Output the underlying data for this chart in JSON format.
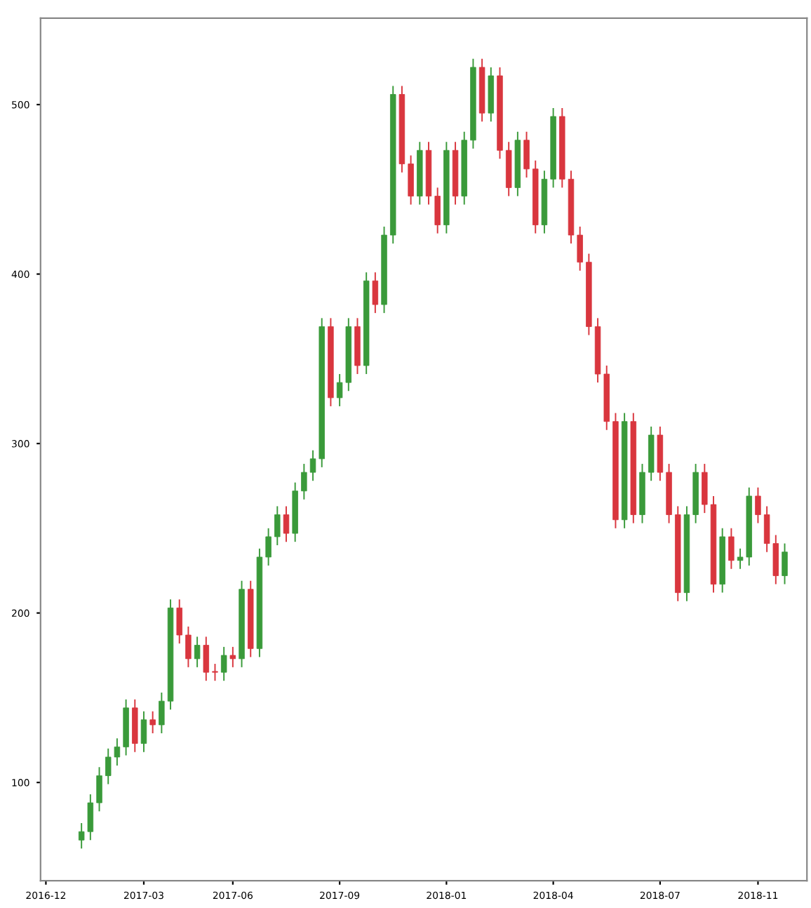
{
  "chart_data": {
    "type": "candlestick",
    "categories": [
      "2016-12",
      null,
      null,
      null,
      null,
      null,
      null,
      null,
      null,
      null,
      null,
      "2017-03",
      null,
      null,
      null,
      null,
      null,
      null,
      null,
      null,
      null,
      "2017-06",
      null,
      null,
      null,
      null,
      null,
      null,
      null,
      null,
      null,
      null,
      null,
      "2017-09",
      null,
      null,
      null,
      null,
      null,
      null,
      null,
      null,
      null,
      null,
      null,
      "2018-01",
      null,
      null,
      null,
      null,
      null,
      null,
      null,
      null,
      null,
      null,
      null,
      "2018-04",
      null,
      null,
      null,
      null,
      null,
      null,
      null,
      null,
      null,
      null,
      null,
      "2018-07",
      null,
      null,
      null,
      null,
      null,
      null,
      null,
      null,
      null,
      null,
      "2018-11",
      null,
      null,
      null
    ],
    "ohlc": [
      null,
      null,
      null,
      null,
      [
        66,
        76,
        61,
        71
      ],
      [
        71,
        93,
        66,
        88
      ],
      [
        88,
        109,
        83,
        104
      ],
      [
        104,
        120,
        99,
        115
      ],
      [
        115,
        126,
        110,
        121
      ],
      [
        121,
        149,
        116,
        144
      ],
      [
        144,
        149,
        118,
        123
      ],
      [
        123,
        142,
        118,
        137
      ],
      [
        137,
        142,
        129,
        134
      ],
      [
        134,
        153,
        129,
        148
      ],
      [
        148,
        208,
        143,
        203
      ],
      [
        203,
        208,
        182,
        187
      ],
      [
        187,
        192,
        168,
        173
      ],
      [
        173,
        186,
        168,
        181
      ],
      [
        181,
        186,
        160,
        165
      ],
      [
        165,
        170,
        160,
        165
      ],
      [
        165,
        180,
        160,
        175
      ],
      [
        175,
        180,
        168,
        173
      ],
      [
        173,
        219,
        168,
        214
      ],
      [
        214,
        219,
        174,
        179
      ],
      [
        179,
        238,
        174,
        233
      ],
      [
        233,
        250,
        228,
        245
      ],
      [
        245,
        263,
        240,
        258
      ],
      [
        258,
        263,
        242,
        247
      ],
      [
        247,
        277,
        242,
        272
      ],
      [
        272,
        288,
        267,
        283
      ],
      [
        283,
        296,
        278,
        291
      ],
      [
        291,
        374,
        286,
        369
      ],
      [
        369,
        374,
        322,
        327
      ],
      [
        327,
        341,
        322,
        336
      ],
      [
        336,
        374,
        331,
        369
      ],
      [
        369,
        374,
        341,
        346
      ],
      [
        346,
        401,
        341,
        396
      ],
      [
        396,
        401,
        377,
        382
      ],
      [
        382,
        428,
        377,
        423
      ],
      [
        423,
        511,
        418,
        506
      ],
      [
        506,
        511,
        460,
        465
      ],
      [
        465,
        470,
        441,
        446
      ],
      [
        446,
        478,
        441,
        473
      ],
      [
        473,
        478,
        441,
        446
      ],
      [
        446,
        451,
        424,
        429
      ],
      [
        429,
        478,
        424,
        473
      ],
      [
        473,
        478,
        441,
        446
      ],
      [
        446,
        484,
        441,
        479
      ],
      [
        479,
        527,
        474,
        522
      ],
      [
        522,
        527,
        490,
        495
      ],
      [
        495,
        522,
        490,
        517
      ],
      [
        517,
        522,
        468,
        473
      ],
      [
        473,
        478,
        446,
        451
      ],
      [
        451,
        484,
        446,
        479
      ],
      [
        479,
        484,
        457,
        462
      ],
      [
        462,
        467,
        424,
        429
      ],
      [
        429,
        461,
        424,
        456
      ],
      [
        456,
        498,
        451,
        493
      ],
      [
        493,
        498,
        451,
        456
      ],
      [
        456,
        461,
        418,
        423
      ],
      [
        423,
        428,
        402,
        407
      ],
      [
        407,
        412,
        364,
        369
      ],
      [
        369,
        374,
        336,
        341
      ],
      [
        341,
        346,
        308,
        313
      ],
      [
        313,
        318,
        250,
        255
      ],
      [
        255,
        318,
        250,
        313
      ],
      [
        313,
        318,
        253,
        258
      ],
      [
        258,
        288,
        253,
        283
      ],
      [
        283,
        310,
        278,
        305
      ],
      [
        305,
        310,
        278,
        283
      ],
      [
        283,
        288,
        253,
        258
      ],
      [
        258,
        263,
        207,
        212
      ],
      [
        212,
        263,
        207,
        258
      ],
      [
        258,
        288,
        253,
        283
      ],
      [
        283,
        288,
        259,
        264
      ],
      [
        264,
        269,
        212,
        217
      ],
      [
        217,
        250,
        212,
        245
      ],
      [
        245,
        250,
        226,
        231
      ],
      [
        231,
        238,
        226,
        233
      ],
      [
        233,
        274,
        228,
        269
      ],
      [
        269,
        274,
        253,
        258
      ],
      [
        258,
        263,
        236,
        241
      ],
      [
        241,
        246,
        217,
        222
      ],
      [
        222,
        241,
        217,
        236
      ]
    ],
    "colors": [
      null,
      null,
      null,
      null,
      "#3a9a3a",
      "#3a9a3a",
      "#3a9a3a",
      "#3a9a3a",
      "#3a9a3a",
      "#3a9a3a",
      "#d9363e",
      "#3a9a3a",
      "#d9363e",
      "#3a9a3a",
      "#3a9a3a",
      "#d9363e",
      "#d9363e",
      "#3a9a3a",
      "#d9363e",
      "#d9363e",
      "#3a9a3a",
      "#d9363e",
      "#3a9a3a",
      "#d9363e",
      "#3a9a3a",
      "#3a9a3a",
      "#3a9a3a",
      "#d9363e",
      "#3a9a3a",
      "#3a9a3a",
      "#3a9a3a",
      "#3a9a3a",
      "#d9363e",
      "#3a9a3a",
      "#3a9a3a",
      "#d9363e",
      "#3a9a3a",
      "#d9363e",
      "#3a9a3a",
      "#3a9a3a",
      "#d9363e",
      "#d9363e",
      "#3a9a3a",
      "#d9363e",
      "#d9363e",
      "#3a9a3a",
      "#d9363e",
      "#3a9a3a",
      "#3a9a3a",
      "#d9363e",
      "#3a9a3a",
      "#d9363e",
      "#d9363e",
      "#3a9a3a",
      "#d9363e",
      "#d9363e",
      "#3a9a3a",
      "#3a9a3a",
      "#d9363e",
      "#d9363e",
      "#d9363e",
      "#d9363e",
      "#d9363e",
      "#d9363e",
      "#d9363e",
      "#3a9a3a",
      "#d9363e",
      "#3a9a3a",
      "#3a9a3a",
      "#d9363e",
      "#d9363e",
      "#d9363e",
      "#3a9a3a",
      "#3a9a3a",
      "#d9363e",
      "#d9363e",
      "#3a9a3a",
      "#d9363e",
      "#3a9a3a",
      "#3a9a3a",
      "#d9363e",
      "#d9363e",
      "#d9363e",
      "#3a9a3a"
    ],
    "ylim": [
      42,
      551
    ],
    "yticks": [
      100,
      200,
      300,
      400,
      500
    ],
    "grid": false
  }
}
